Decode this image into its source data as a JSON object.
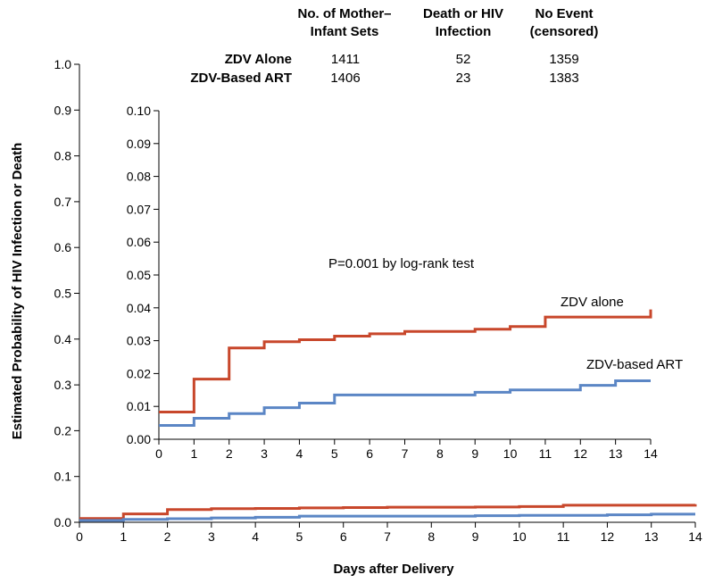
{
  "chart_data": {
    "type": "line",
    "step": true,
    "xlabel": "Days after Delivery",
    "ylabel": "Estimated Probability of HIV Infection or Death",
    "xlim": [
      0,
      14
    ],
    "ylim": [
      0,
      1.0
    ],
    "x_ticks": [
      "0",
      "1",
      "2",
      "3",
      "4",
      "5",
      "6",
      "7",
      "8",
      "9",
      "10",
      "11",
      "12",
      "13",
      "14"
    ],
    "y_ticks": [
      "0.0",
      "0.1",
      "0.2",
      "0.3",
      "0.4",
      "0.5",
      "0.6",
      "0.7",
      "0.8",
      "0.9",
      "1.0"
    ],
    "grid": false,
    "table": {
      "headers": [
        [
          "No. of Mother–",
          "Infant Sets"
        ],
        [
          "Death or HIV",
          "Infection"
        ],
        [
          "No Event",
          "(censored)"
        ]
      ],
      "rows": [
        {
          "label": "ZDV Alone",
          "values": [
            "1411",
            "52",
            "1359"
          ]
        },
        {
          "label": "ZDV-Based ART",
          "values": [
            "1406",
            "23",
            "1383"
          ]
        }
      ]
    },
    "series": [
      {
        "name": "ZDV alone",
        "color": "#c8472b",
        "x": [
          0,
          1,
          2,
          3,
          4,
          5,
          6,
          7,
          9,
          10,
          11,
          14
        ],
        "y": [
          0.0083,
          0.0183,
          0.0278,
          0.0297,
          0.0303,
          0.0314,
          0.0321,
          0.0328,
          0.0335,
          0.0343,
          0.0372,
          0.0395
        ]
      },
      {
        "name": "ZDV-based ART",
        "color": "#5b86c5",
        "x": [
          0,
          1,
          2,
          3,
          4,
          5,
          9,
          10,
          12,
          13,
          14
        ],
        "y": [
          0.0042,
          0.0064,
          0.0078,
          0.0096,
          0.011,
          0.0135,
          0.0143,
          0.015,
          0.0164,
          0.0178,
          0.0178
        ]
      }
    ],
    "inset": {
      "xlim": [
        0,
        14
      ],
      "ylim": [
        0,
        0.1
      ],
      "x_ticks": [
        "0",
        "1",
        "2",
        "3",
        "4",
        "5",
        "6",
        "7",
        "8",
        "9",
        "10",
        "11",
        "12",
        "13",
        "14"
      ],
      "y_ticks": [
        "0.00",
        "0.01",
        "0.02",
        "0.03",
        "0.04",
        "0.05",
        "0.06",
        "0.07",
        "0.08",
        "0.09",
        "0.10"
      ],
      "annotation": "P=0.001 by log-rank test",
      "series_labels": [
        "ZDV alone",
        "ZDV-based ART"
      ]
    }
  }
}
